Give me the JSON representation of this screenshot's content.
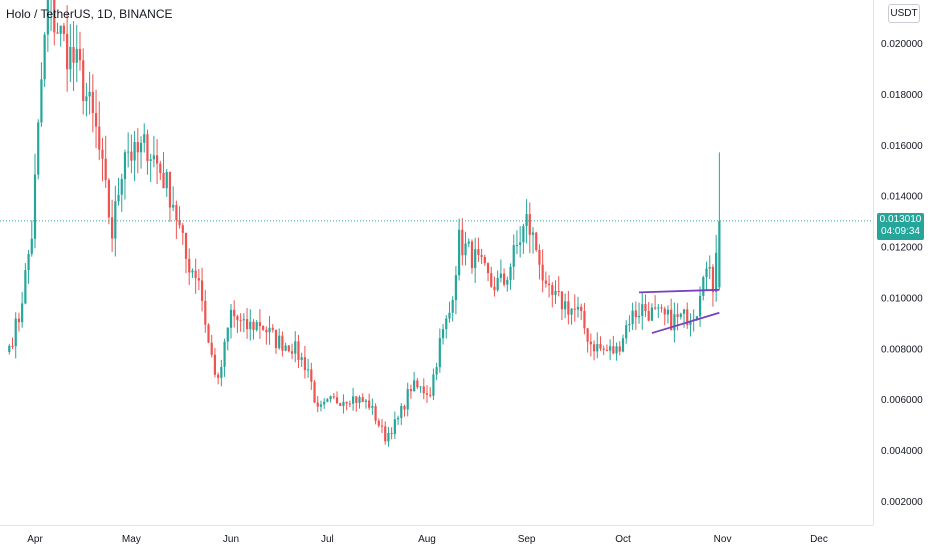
{
  "header": {
    "title": "Holo / TetherUS, 1D, BINANCE",
    "unit": "USDT"
  },
  "last_price": {
    "value": "0.013010",
    "countdown": "04:09:34"
  },
  "colors": {
    "up": "#26a69a",
    "down": "#ef5350",
    "trendline": "#7b3fc2",
    "grid_line": "#e0e3eb"
  },
  "chart_data": {
    "type": "candlestick",
    "x_axis": {
      "labels": [
        "Apr",
        "May",
        "Jun",
        "Jul",
        "Aug",
        "Sep",
        "Oct",
        "Nov",
        "Dec"
      ]
    },
    "y_axis": {
      "ticks": [
        "0.020000",
        "0.018000",
        "0.016000",
        "0.014000",
        "0.012000",
        "0.010000",
        "0.008000",
        "0.006000",
        "0.004000",
        "0.002000"
      ],
      "range": [
        0.0013,
        0.0215
      ]
    },
    "series": [
      {
        "name": "Holo / TetherUS",
        "anchors": [
          {
            "date": "Mar 24",
            "close": 0.0081
          },
          {
            "date": "Mar 27",
            "close": 0.0092
          },
          {
            "date": "Mar 31",
            "close": 0.0125
          },
          {
            "date": "Apr 3",
            "close": 0.0185
          },
          {
            "date": "Apr 5",
            "close": 0.0215
          },
          {
            "date": "Apr 10",
            "close": 0.02
          },
          {
            "date": "Apr 15",
            "close": 0.0188
          },
          {
            "date": "Apr 20",
            "close": 0.0165
          },
          {
            "date": "Apr 25",
            "close": 0.0125
          },
          {
            "date": "Apr 29",
            "close": 0.016
          },
          {
            "date": "May 2",
            "close": 0.0155
          },
          {
            "date": "May 6",
            "close": 0.016
          },
          {
            "date": "May 10",
            "close": 0.015
          },
          {
            "date": "May 14",
            "close": 0.0138
          },
          {
            "date": "May 18",
            "close": 0.0115
          },
          {
            "date": "May 22",
            "close": 0.0108
          },
          {
            "date": "May 25",
            "close": 0.0082
          },
          {
            "date": "May 28",
            "close": 0.0066
          },
          {
            "date": "Jun 1",
            "close": 0.0094
          },
          {
            "date": "Jun 5",
            "close": 0.0088
          },
          {
            "date": "Jun 10",
            "close": 0.009
          },
          {
            "date": "Jun 15",
            "close": 0.0083
          },
          {
            "date": "Jun 20",
            "close": 0.0081
          },
          {
            "date": "Jun 25",
            "close": 0.0072
          },
          {
            "date": "Jun 28",
            "close": 0.0055
          },
          {
            "date": "Jul 2",
            "close": 0.0059
          },
          {
            "date": "Jul 8",
            "close": 0.0061
          },
          {
            "date": "Jul 14",
            "close": 0.0058
          },
          {
            "date": "Jul 19",
            "close": 0.0045
          },
          {
            "date": "Jul 23",
            "close": 0.0052
          },
          {
            "date": "Jul 27",
            "close": 0.0065
          },
          {
            "date": "Aug 2",
            "close": 0.0063
          },
          {
            "date": "Aug 5",
            "close": 0.0082
          },
          {
            "date": "Aug 8",
            "close": 0.0094
          },
          {
            "date": "Aug 11",
            "close": 0.0122
          },
          {
            "date": "Aug 16",
            "close": 0.0115
          },
          {
            "date": "Aug 21",
            "close": 0.0105
          },
          {
            "date": "Aug 25",
            "close": 0.0106
          },
          {
            "date": "Aug 29",
            "close": 0.012
          },
          {
            "date": "Sep 1",
            "close": 0.013
          },
          {
            "date": "Sep 5",
            "close": 0.0116
          },
          {
            "date": "Sep 7",
            "close": 0.0101
          },
          {
            "date": "Sep 12",
            "close": 0.0098
          },
          {
            "date": "Sep 17",
            "close": 0.0094
          },
          {
            "date": "Sep 21",
            "close": 0.0082
          },
          {
            "date": "Sep 25",
            "close": 0.0079
          },
          {
            "date": "Sep 29",
            "close": 0.0079
          },
          {
            "date": "Oct 3",
            "close": 0.0092
          },
          {
            "date": "Oct 7",
            "close": 0.0096
          },
          {
            "date": "Oct 11",
            "close": 0.0093
          },
          {
            "date": "Oct 16",
            "close": 0.0091
          },
          {
            "date": "Oct 20",
            "close": 0.0092
          },
          {
            "date": "Oct 24",
            "close": 0.0096
          },
          {
            "date": "Oct 26",
            "close": 0.0113
          },
          {
            "date": "Oct 29",
            "close": 0.0105
          },
          {
            "date": "Oct 31",
            "close": 0.013
          }
        ],
        "last_candle": {
          "date": "Oct 31",
          "open": 0.0104,
          "high": 0.0157,
          "low": 0.0103,
          "close": 0.013
        }
      }
    ],
    "annotations": [
      {
        "type": "trendline",
        "from": {
          "date": "Oct 6",
          "value": 0.0102
        },
        "to": {
          "date": "Oct 31",
          "value": 0.0103
        }
      },
      {
        "type": "trendline",
        "from": {
          "date": "Oct 10",
          "value": 0.0086
        },
        "to": {
          "date": "Oct 31",
          "value": 0.0094
        }
      }
    ],
    "grid": false,
    "price_line": 0.01301
  }
}
